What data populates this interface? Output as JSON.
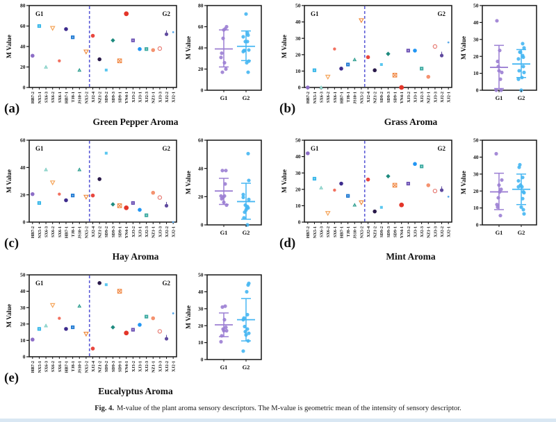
{
  "caption": {
    "label": "Fig. 4.",
    "text": "M-value of the plant aroma sensory descriptors. The M-value is geometric mean of the intensity of sensory descriptor."
  },
  "groups": {
    "g1_label": "G1",
    "g2_label": "G2",
    "g1_count": 9,
    "g1_color": "#9b7ed3",
    "g2_color": "#45b6f2",
    "divider_color": "#5b5bd6"
  },
  "page_colors": {
    "footer_strip": "#d9e7f3",
    "axis": "#141414"
  },
  "samples": [
    {
      "id": "HB7-2",
      "shape": "circle",
      "color": "#8d6ec7"
    },
    {
      "id": "NX5-1",
      "shape": "square",
      "color": "#33b5e8"
    },
    {
      "id": "SX6-3",
      "shape": "triangle",
      "color": "#7ecec4"
    },
    {
      "id": "SX6-2",
      "shape": "triangle-down",
      "color": "#f5a55a"
    },
    {
      "id": "SX6-1",
      "shape": "circle-small",
      "color": "#f2705f"
    },
    {
      "id": "HB7-1",
      "shape": "circle",
      "color": "#3d2b8d"
    },
    {
      "id": "TJ8-1",
      "shape": "square",
      "color": "#1d78d2"
    },
    {
      "id": "JS10-1",
      "shape": "triangle",
      "color": "#2d9e8f"
    },
    {
      "id": "NX5-2",
      "shape": "triangle-down",
      "color": "#ef8b3e"
    },
    {
      "id": "XJ2-4",
      "shape": "circle",
      "color": "#e8473f"
    },
    {
      "id": "NZ1-2",
      "shape": "circle",
      "color": "#2a1a4a"
    },
    {
      "id": "SD9-2",
      "shape": "square-small",
      "color": "#59c7f0"
    },
    {
      "id": "SD9-3",
      "shape": "diamond",
      "color": "#1d8a7e"
    },
    {
      "id": "SD9-1",
      "shape": "square-x",
      "color": "#ef7f35"
    },
    {
      "id": "YN4-1",
      "shape": "circle-large",
      "color": "#e33529"
    },
    {
      "id": "XJ3-2",
      "shape": "square",
      "color": "#6a4fb3"
    },
    {
      "id": "XJ3-1",
      "shape": "circle",
      "color": "#2196f3"
    },
    {
      "id": "XJ2-3",
      "shape": "square",
      "color": "#3aa9a0"
    },
    {
      "id": "NZ1-1",
      "shape": "circle",
      "color": "#f4926f"
    },
    {
      "id": "XJ3-3",
      "shape": "circle-open",
      "color": "#e77a72"
    },
    {
      "id": "XJ2-2",
      "shape": "circle-tail",
      "color": "#5f4a9e"
    },
    {
      "id": "XJ2-1",
      "shape": "dot",
      "color": "#5aa8e8"
    }
  ],
  "chart_data": [
    {
      "type": "scatter",
      "letter": "(a)",
      "title": "Green Pepper Aroma",
      "ylabel": "M Value",
      "ylim": [
        0,
        80
      ],
      "ytick_step": 20,
      "categories": [
        "HB7-2",
        "NX5-1",
        "SX6-3",
        "SX6-2",
        "SX6-1",
        "HB7-1",
        "TJ8-1",
        "JS10-1",
        "NX5-2",
        "XJ2-4",
        "NZ1-2",
        "SD9-2",
        "SD9-3",
        "SD9-1",
        "YN4-1",
        "XJ3-2",
        "XJ3-1",
        "XJ2-3",
        "NZ1-1",
        "XJ3-3",
        "XJ2-2",
        "XJ2-1"
      ],
      "values": [
        31,
        60,
        20,
        58,
        26,
        57,
        49,
        17,
        35,
        50.5,
        27.5,
        17,
        46,
        26,
        72,
        46,
        37.5,
        37.5,
        36.5,
        38,
        52,
        54
      ],
      "side_categories": [
        "G1",
        "G2"
      ],
      "summary": {
        "G1": {
          "mean": 39,
          "low": 22,
          "high": 57
        },
        "G2": {
          "mean": 41.5,
          "low": 28,
          "high": 56
        }
      }
    },
    {
      "type": "scatter",
      "letter": "(b)",
      "title": "Grass Aroma",
      "ylabel": "M Value",
      "ylim": [
        0,
        50
      ],
      "ytick_step": 10,
      "categories": [
        "HB7-2",
        "NX5-1",
        "SX6-3",
        "SX6-2",
        "SX6-1",
        "HB7-1",
        "TJ8-1",
        "JS10-1",
        "NX5-2",
        "XJ2-4",
        "NZ1-2",
        "SD9-2",
        "SD9-3",
        "SD9-1",
        "YN4-1",
        "XJ3-2",
        "XJ3-1",
        "XJ2-3",
        "NZ1-1",
        "XJ3-3",
        "XJ2-2",
        "XJ2-1"
      ],
      "values": [
        0,
        10.5,
        0,
        6.5,
        23.5,
        11.5,
        14,
        17,
        41,
        18.5,
        10.5,
        14,
        20.5,
        7.5,
        0,
        22.5,
        22.5,
        11.5,
        6.5,
        25,
        19.5,
        27.5
      ],
      "side_categories": [
        "G1",
        "G2"
      ],
      "summary": {
        "G1": {
          "mean": 13.5,
          "low": 1,
          "high": 26.5
        },
        "G2": {
          "mean": 15.5,
          "low": 7.5,
          "high": 24
        }
      }
    },
    {
      "type": "scatter",
      "letter": "(c)",
      "title": "Hay Aroma",
      "ylabel": "M Value",
      "ylim": [
        0,
        60
      ],
      "ytick_step": 20,
      "categories": [
        "HB7-2",
        "NX5-1",
        "SX6-3",
        "SX6-2",
        "SX6-1",
        "HB7-1",
        "TJ8-1",
        "JS10-1",
        "NX5-2",
        "XJ2-4",
        "NZ1-2",
        "SD9-2",
        "SD9-3",
        "SD9-1",
        "YN4-1",
        "XJ3-2",
        "XJ3-1",
        "XJ2-3",
        "NZ1-1",
        "XJ3-3",
        "XJ2-2",
        "XJ2-1"
      ],
      "values": [
        20.5,
        14,
        38.5,
        29,
        20.5,
        16,
        19.5,
        38.5,
        18.5,
        19.5,
        31.5,
        50.5,
        13,
        12,
        10.5,
        14,
        9,
        5,
        21.5,
        18,
        12,
        0
      ],
      "side_categories": [
        "G1",
        "G2"
      ],
      "summary": {
        "G1": {
          "mean": 24,
          "low": 14.5,
          "high": 33
        },
        "G2": {
          "mean": 16.5,
          "low": 4,
          "high": 29.5
        }
      }
    },
    {
      "type": "scatter",
      "letter": "(d)",
      "title": "Mint Aroma",
      "ylabel": "M Value",
      "ylim": [
        0,
        50
      ],
      "ytick_step": 10,
      "categories": [
        "HB7-2",
        "NX5-1",
        "SX6-3",
        "SX6-2",
        "SX6-1",
        "HB7-1",
        "TJ8-1",
        "JS10-1",
        "NX5-2",
        "XJ2-4",
        "NZ1-2",
        "SD9-2",
        "SD9-3",
        "SD9-1",
        "YN4-1",
        "XJ3-2",
        "XJ3-1",
        "XJ2-3",
        "NZ1-1",
        "XJ3-3",
        "XJ2-2",
        "XJ2-1"
      ],
      "values": [
        42,
        26.5,
        21,
        5.5,
        19.5,
        23.5,
        16,
        10.5,
        12,
        26,
        6.5,
        9,
        28,
        22.5,
        10.5,
        23.5,
        35.5,
        34,
        22.5,
        19,
        19.5,
        15.5
      ],
      "side_categories": [
        "G1",
        "G2"
      ],
      "summary": {
        "G1": {
          "mean": 19.5,
          "low": 9,
          "high": 30.5
        },
        "G2": {
          "mean": 21,
          "low": 12,
          "high": 30
        }
      }
    },
    {
      "type": "scatter",
      "letter": "(e)",
      "title": "Eucalyptus Aroma",
      "ylabel": "M Value",
      "ylim": [
        0,
        50
      ],
      "ytick_step": 10,
      "categories": [
        "HB7-2",
        "NX5-1",
        "SX6-3",
        "SX6-2",
        "SX6-1",
        "HB7-1",
        "TJ8-1",
        "JS10-1",
        "NX5-2",
        "XJ2-4",
        "NZ1-2",
        "SD9-2",
        "SD9-3",
        "SD9-1",
        "YN4-1",
        "XJ3-2",
        "XJ3-1",
        "XJ2-3",
        "NZ1-1",
        "XJ3-3",
        "XJ2-2",
        "XJ2-1"
      ],
      "values": [
        10.5,
        17,
        19,
        31.5,
        23.5,
        17,
        18,
        31,
        14,
        5,
        45,
        44,
        18,
        40,
        14.5,
        16.5,
        19.5,
        24.5,
        23.5,
        15.5,
        11,
        26.5
      ],
      "side_categories": [
        "G1",
        "G2"
      ],
      "summary": {
        "G1": {
          "mean": 20.5,
          "low": 13.5,
          "high": 27.5
        },
        "G2": {
          "mean": 23.5,
          "low": 11,
          "high": 36
        }
      }
    }
  ]
}
